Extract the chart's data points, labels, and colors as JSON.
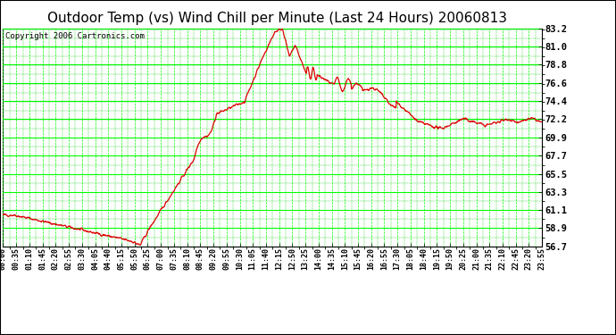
{
  "title": "Outdoor Temp (vs) Wind Chill per Minute (Last 24 Hours) 20060813",
  "copyright_text": "Copyright 2006 Cartronics.com",
  "background_color": "#ffffff",
  "plot_bg_color": "#ffffff",
  "grid_major_color": "#00ff00",
  "grid_minor_color": "#00cc00",
  "line_color": "#dd0000",
  "border_color": "#000000",
  "yticks": [
    56.7,
    58.9,
    61.1,
    63.3,
    65.5,
    67.7,
    69.9,
    72.2,
    74.4,
    76.6,
    78.8,
    81.0,
    83.2
  ],
  "ymin": 56.7,
  "ymax": 83.2,
  "xtick_labels": [
    "00:00",
    "00:35",
    "01:10",
    "01:45",
    "02:20",
    "02:55",
    "03:30",
    "04:05",
    "04:40",
    "05:15",
    "05:50",
    "06:25",
    "07:00",
    "07:35",
    "08:10",
    "08:45",
    "09:20",
    "09:55",
    "10:30",
    "11:05",
    "11:40",
    "12:15",
    "12:50",
    "13:25",
    "14:00",
    "14:35",
    "15:10",
    "15:45",
    "16:20",
    "16:55",
    "17:30",
    "18:05",
    "18:40",
    "19:15",
    "19:50",
    "20:25",
    "21:00",
    "21:35",
    "22:10",
    "22:45",
    "23:20",
    "23:55"
  ],
  "title_fontsize": 11,
  "copyright_fontsize": 6.5,
  "tick_fontsize": 6,
  "ytick_fontsize": 7.5
}
